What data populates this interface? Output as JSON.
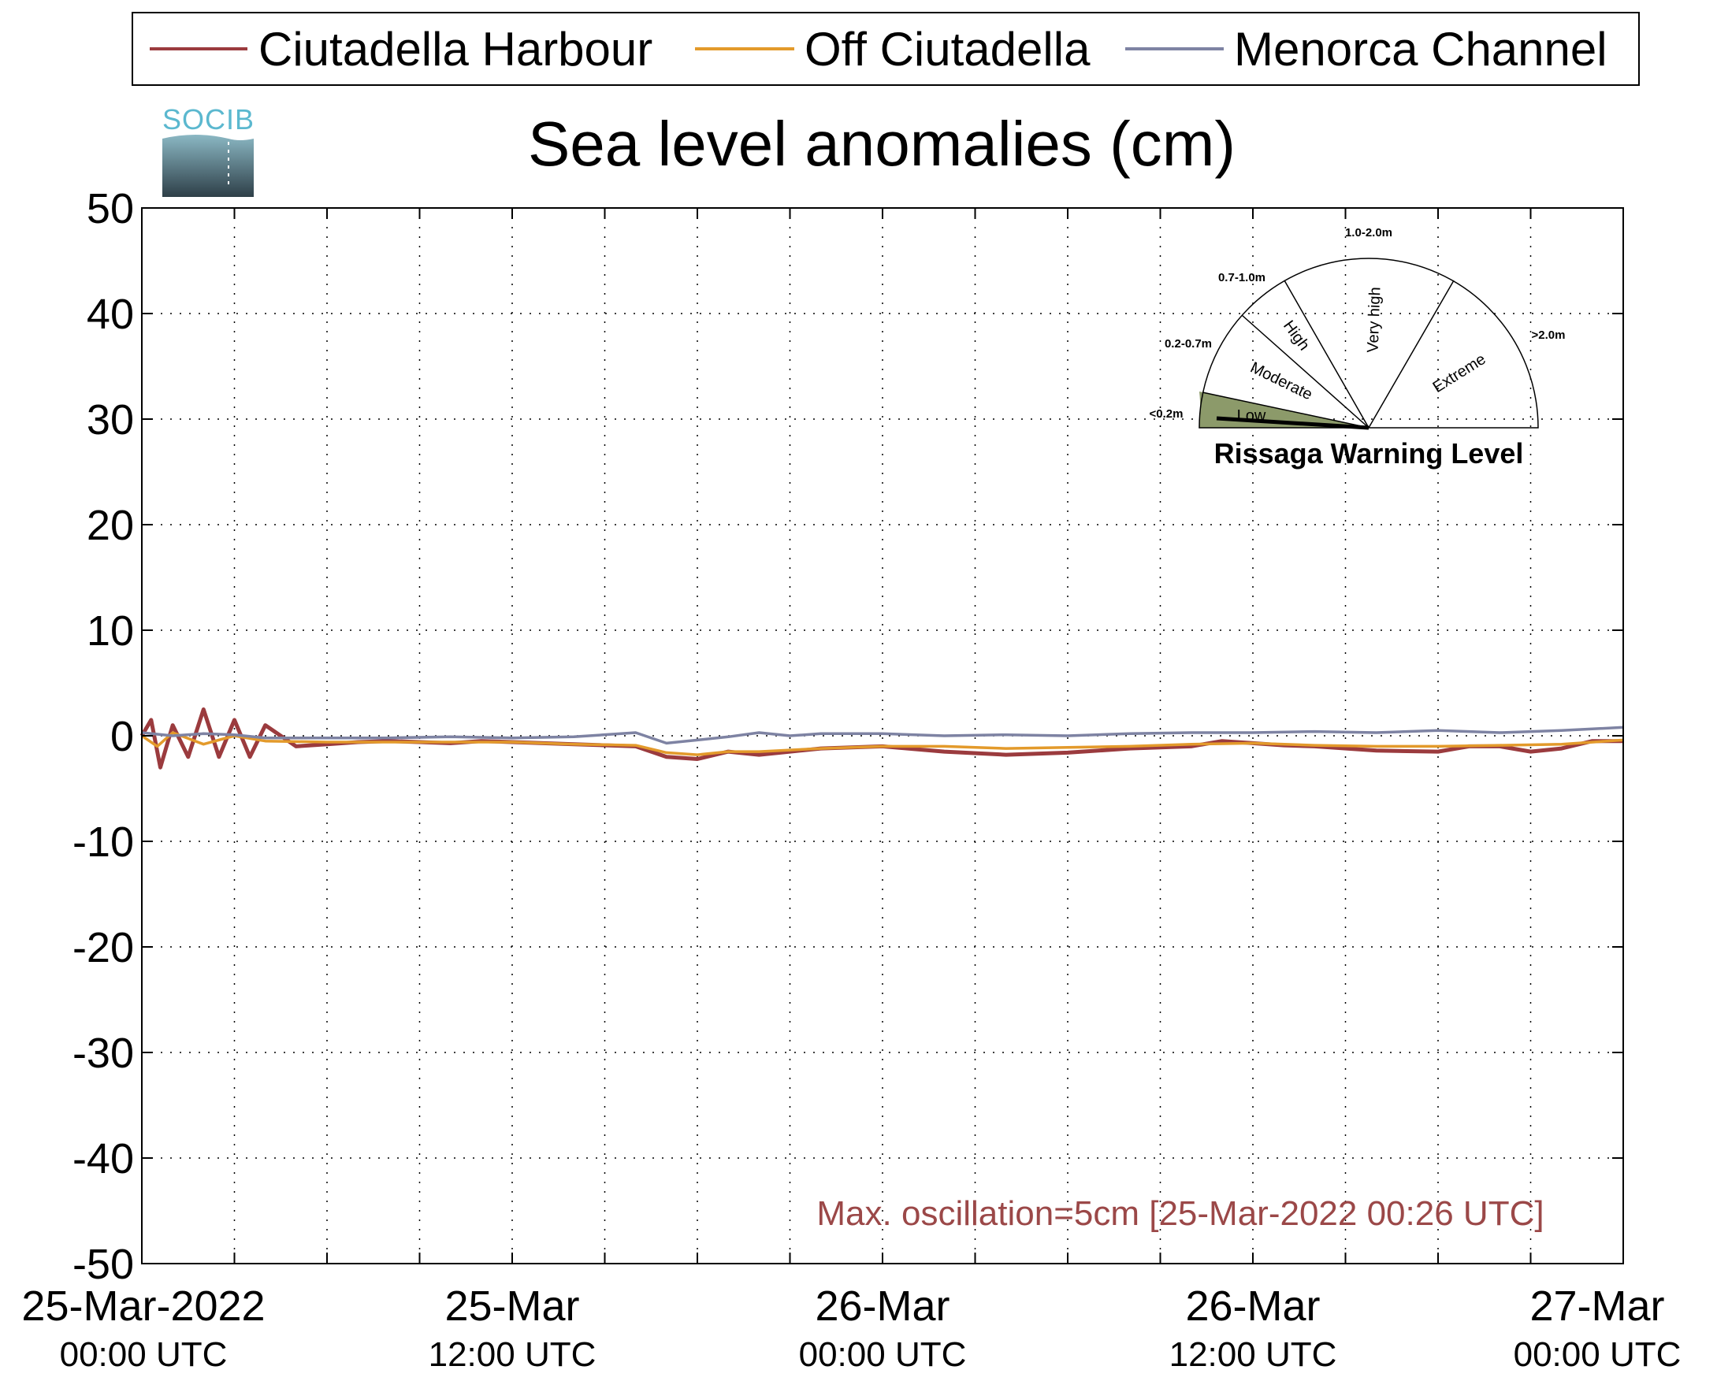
{
  "logo": {
    "text": "SOCIB"
  },
  "legend": {
    "items": [
      {
        "name": "Ciutadella Harbour",
        "color": "#9b3b3e"
      },
      {
        "name": "Off Ciutadella",
        "color": "#e39a2b"
      },
      {
        "name": "Menorca Channel",
        "color": "#7e83a3"
      }
    ],
    "placement": "top"
  },
  "chart_data": {
    "type": "line",
    "title": "Sea level anomalies (cm)",
    "xlabel": "",
    "ylabel": "",
    "x_unit": "hours since 25-Mar-2022 00:00 UTC",
    "xlim": [
      0,
      48
    ],
    "ylim": [
      -50,
      50
    ],
    "yticks": [
      50,
      40,
      30,
      20,
      10,
      0,
      -10,
      -20,
      -30,
      -40,
      -50
    ],
    "xticks": [
      {
        "x": 0,
        "top": "25-Mar-2022",
        "bottom": "00:00 UTC"
      },
      {
        "x": 12,
        "top": "25-Mar",
        "bottom": "12:00 UTC"
      },
      {
        "x": 24,
        "top": "26-Mar",
        "bottom": "00:00 UTC"
      },
      {
        "x": 36,
        "top": "26-Mar",
        "bottom": "12:00 UTC"
      },
      {
        "x": 48,
        "top": "27-Mar",
        "bottom": "00:00 UTC"
      }
    ],
    "grid": true,
    "series": [
      {
        "name": "Ciutadella Harbour",
        "color": "#9b3b3e",
        "x": [
          0,
          0.3,
          0.6,
          1,
          1.5,
          2,
          2.5,
          3,
          3.5,
          4,
          5,
          6,
          7,
          8,
          9,
          10,
          11,
          12,
          14,
          16,
          17,
          18,
          19,
          20,
          21,
          22,
          24,
          26,
          28,
          30,
          32,
          34,
          35,
          36,
          37,
          38,
          40,
          42,
          43,
          44,
          45,
          46,
          47,
          48
        ],
        "y": [
          0,
          1.5,
          -3,
          1,
          -2,
          2.5,
          -2,
          1.5,
          -2,
          1,
          -1,
          -0.8,
          -0.6,
          -0.5,
          -0.6,
          -0.7,
          -0.5,
          -0.6,
          -0.8,
          -1,
          -2,
          -2.2,
          -1.5,
          -1.8,
          -1.5,
          -1.2,
          -1,
          -1.5,
          -1.8,
          -1.6,
          -1.2,
          -1,
          -0.5,
          -0.7,
          -0.9,
          -1,
          -1.4,
          -1.5,
          -1,
          -1,
          -1.5,
          -1.2,
          -0.5,
          -0.5
        ]
      },
      {
        "name": "Off Ciutadella",
        "color": "#e39a2b",
        "x": [
          0,
          0.5,
          1,
          2,
          3,
          4,
          6,
          8,
          10,
          12,
          14,
          16,
          17,
          18,
          19,
          20,
          22,
          24,
          26,
          28,
          30,
          32,
          34,
          36,
          38,
          40,
          42,
          44,
          46,
          48
        ],
        "y": [
          0,
          -1,
          0.3,
          -0.8,
          0,
          -0.5,
          -0.6,
          -0.6,
          -0.6,
          -0.6,
          -0.8,
          -0.9,
          -1.6,
          -1.8,
          -1.5,
          -1.5,
          -1.2,
          -1,
          -1,
          -1.2,
          -1.1,
          -1,
          -0.8,
          -0.7,
          -0.9,
          -1,
          -1,
          -0.9,
          -0.8,
          -0.4
        ]
      },
      {
        "name": "Menorca Channel",
        "color": "#7e83a3",
        "x": [
          0,
          1,
          2,
          3,
          4,
          6,
          8,
          10,
          12,
          14,
          16,
          17,
          18,
          19,
          20,
          21,
          22,
          24,
          26,
          28,
          30,
          32,
          34,
          36,
          38,
          40,
          42,
          44,
          46,
          48
        ],
        "y": [
          0.3,
          0,
          0.2,
          0.1,
          -0.2,
          -0.2,
          -0.2,
          -0.1,
          -0.2,
          -0.1,
          0.3,
          -0.7,
          -0.4,
          -0.1,
          0.3,
          0,
          0.2,
          0.2,
          0,
          0.1,
          0,
          0.2,
          0.3,
          0.3,
          0.4,
          0.3,
          0.5,
          0.3,
          0.5,
          0.8
        ]
      }
    ],
    "annotation": {
      "text": "Max. oscillation=5cm [25-Mar-2022 00:26 UTC]",
      "color": "#9b4848"
    }
  },
  "gauge": {
    "title": "Rissaga Warning Level",
    "value_level": "Low",
    "levels": [
      {
        "label": "Low",
        "range": "<0.2m",
        "range_color": "#7a8a50",
        "fill": "#8c9a6a"
      },
      {
        "label": "Moderate",
        "range": "0.2-0.7m",
        "range_color": "#4f7a7a",
        "fill": "#ffffff"
      },
      {
        "label": "High",
        "range": "0.7-1.0m",
        "range_color": "#f0d000",
        "fill": "#ffffff"
      },
      {
        "label": "Very high",
        "range": "1.0-2.0m",
        "range_color": "#f08a1c",
        "fill": "#ffffff"
      },
      {
        "label": "Extreme",
        "range": ">2.0m",
        "range_color": "#e01010",
        "fill": "#ffffff"
      }
    ]
  }
}
